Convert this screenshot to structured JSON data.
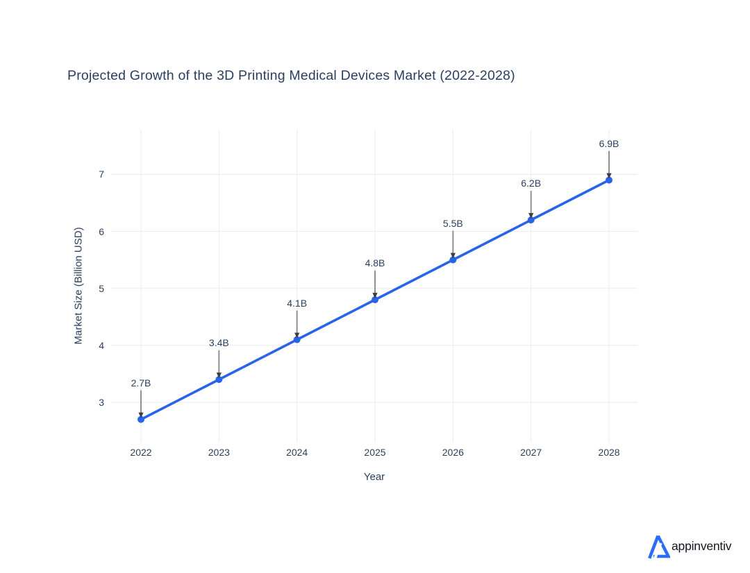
{
  "chart_data": {
    "type": "line",
    "title": "Projected Growth of the 3D Printing Medical Devices Market (2022-2028)",
    "xlabel": "Year",
    "ylabel": "Market Size (Billion USD)",
    "categories": [
      2022,
      2023,
      2024,
      2025,
      2026,
      2027,
      2028
    ],
    "values": [
      2.7,
      3.4,
      4.1,
      4.8,
      5.5,
      6.2,
      6.9
    ],
    "point_labels": [
      "2.7B",
      "3.4B",
      "4.1B",
      "4.8B",
      "5.5B",
      "6.2B",
      "6.9B"
    ],
    "yticks": [
      3,
      4,
      5,
      6,
      7
    ],
    "ylim": [
      2.3,
      7.8
    ],
    "grid": true,
    "legend_position": "none",
    "line_color": "#2764e7",
    "marker_color": "#2764e7",
    "grid_color": "#e9ebf0",
    "text_color": "#2a3f5f",
    "annotation_line_color": "#909090",
    "annotation_arrow_color": "#3d3d3d"
  },
  "branding": {
    "logo_text": "appinventiv",
    "logo_color": "#2b6df6",
    "logo_icon": "appinventiv-triangle"
  }
}
